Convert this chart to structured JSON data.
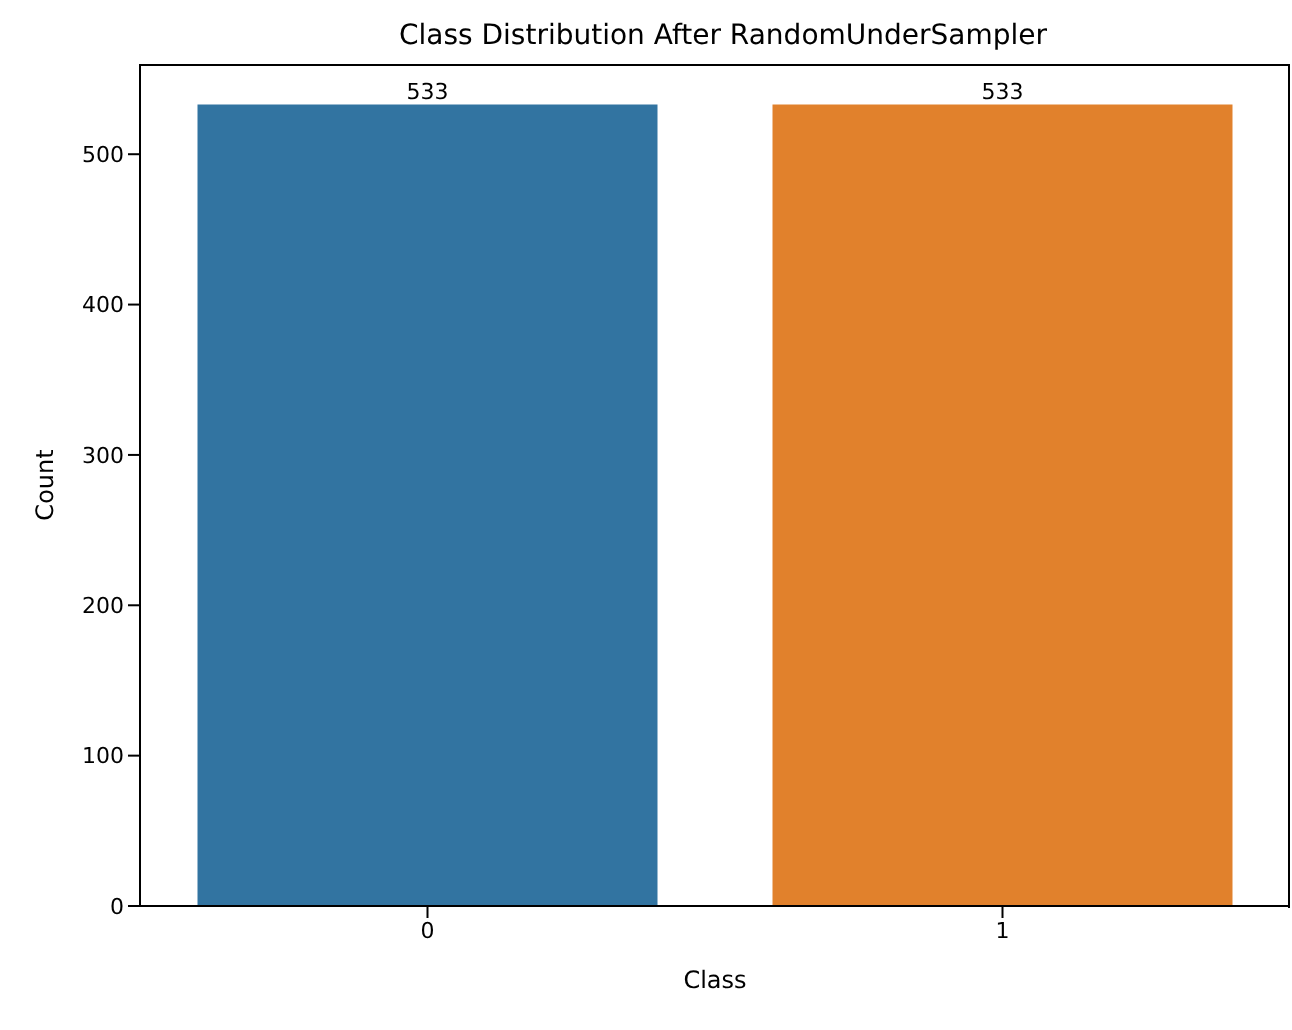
{
  "chart_data": {
    "type": "bar",
    "title": "Class Distribution After RandomUnderSampler",
    "xlabel": "Class",
    "ylabel": "Count",
    "categories": [
      "0",
      "1"
    ],
    "values": [
      533,
      533
    ],
    "colors": [
      "#3274a1",
      "#e1812c"
    ],
    "ylim": [
      0,
      560
    ],
    "yticks": [
      0,
      100,
      200,
      300,
      400,
      500
    ],
    "data_labels": true,
    "grid": false
  }
}
